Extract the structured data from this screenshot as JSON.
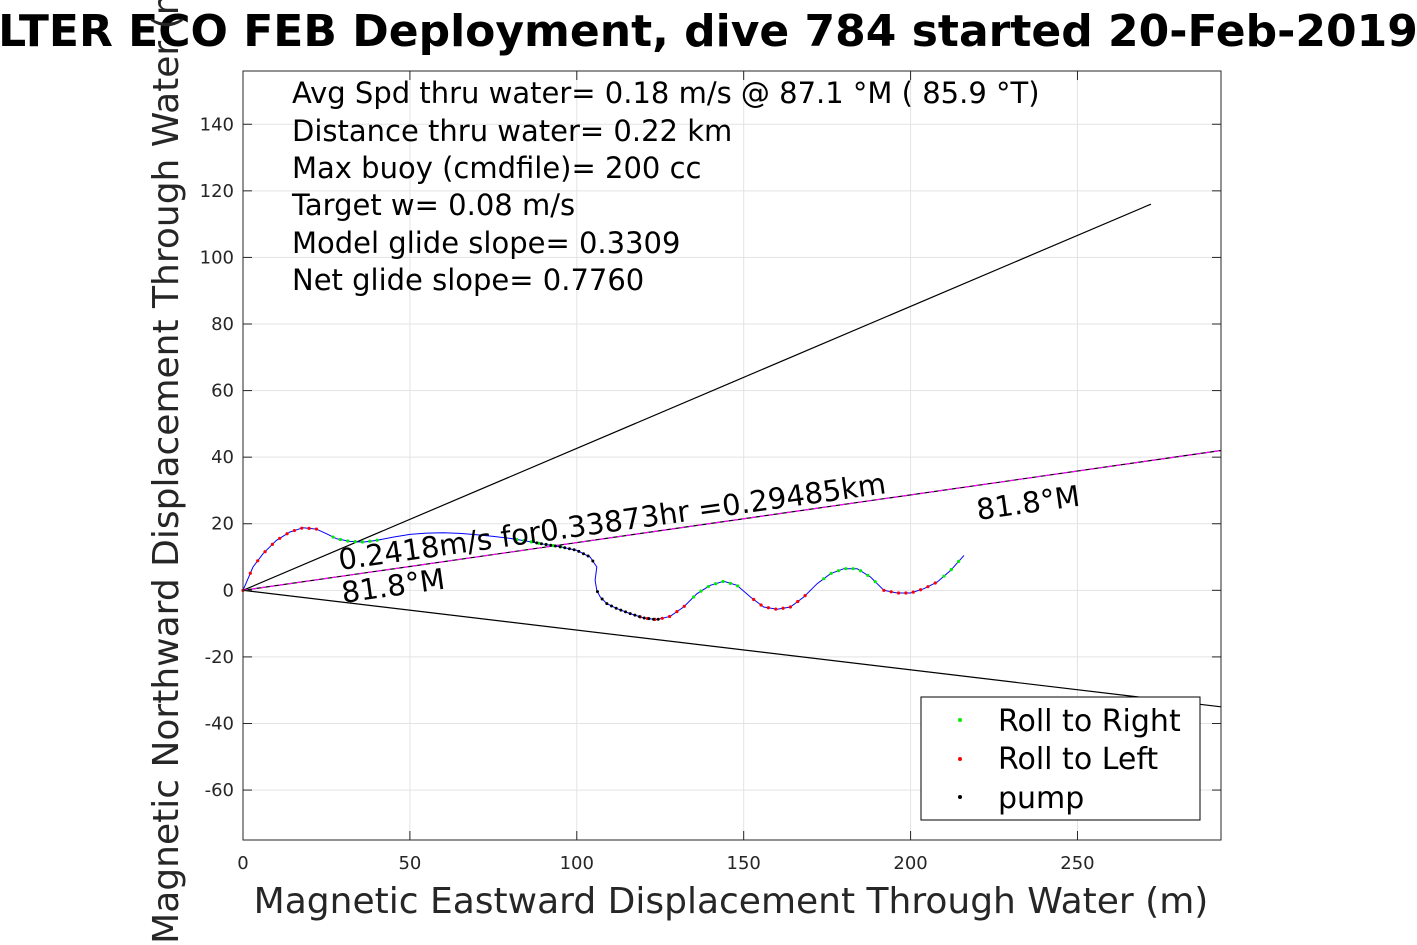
{
  "chart_data": {
    "type": "scatter",
    "title": "LTER ECO FEB Deployment, dive 784 started 20-Feb-2019",
    "xlabel": "Magnetic Eastward Displacement Through Water (m)",
    "ylabel": "Magnetic Northward Displacement Through Water (m)",
    "xlim": [
      0,
      293
    ],
    "ylim": [
      -75,
      156
    ],
    "xticks": [
      0,
      50,
      100,
      150,
      200,
      250
    ],
    "yticks": [
      -60,
      -40,
      -20,
      0,
      20,
      40,
      60,
      80,
      100,
      120,
      140
    ],
    "grid": true,
    "legend_position": "bottom-right",
    "info_lines": [
      "Avg Spd thru water=  0.18 m/s @  87.1 °M ( 85.9 °T)",
      "Distance thru water=  0.22 km",
      "Max buoy (cmdfile)= 200 cc",
      "Target w= 0.08 m/s",
      "Model glide slope= 0.3309",
      "Net glide slope= 0.7760"
    ],
    "annotations": {
      "current_text": "0.2418m/s for0.33873hr =0.29485km",
      "heading_label_near": "81.8°M",
      "heading_label_far": "81.8°M"
    },
    "reference_lines": [
      {
        "name": "upper cone",
        "color": "#000000",
        "points": [
          [
            0,
            0
          ],
          [
            272,
            116
          ]
        ]
      },
      {
        "name": "lower cone",
        "color": "#000000",
        "points": [
          [
            0,
            0
          ],
          [
            293,
            -35
          ]
        ]
      },
      {
        "name": "heading",
        "color": "#000000",
        "points": [
          [
            0,
            0
          ],
          [
            293,
            42
          ]
        ]
      },
      {
        "name": "current",
        "color": "#ff00ff",
        "dashed": true,
        "points": [
          [
            0,
            0
          ],
          [
            293,
            42
          ]
        ]
      }
    ],
    "track": {
      "color": "#0000ff",
      "points": [
        [
          0,
          0
        ],
        [
          3,
          7
        ],
        [
          6,
          11
        ],
        [
          10,
          15
        ],
        [
          14,
          17.5
        ],
        [
          18,
          18.8
        ],
        [
          22,
          18.4
        ],
        [
          25,
          17
        ],
        [
          28,
          15.5
        ],
        [
          32,
          14.7
        ],
        [
          36,
          14.5
        ],
        [
          40,
          15
        ],
        [
          45,
          16
        ],
        [
          50,
          16.8
        ],
        [
          55,
          17.2
        ],
        [
          60,
          17.3
        ],
        [
          65,
          17.1
        ],
        [
          70,
          16.7
        ],
        [
          75,
          16.2
        ],
        [
          80,
          15.6
        ],
        [
          85,
          14.8
        ],
        [
          90,
          13.9
        ],
        [
          95,
          13.1
        ],
        [
          100,
          12
        ],
        [
          104,
          10
        ],
        [
          106,
          7
        ],
        [
          105.5,
          3
        ],
        [
          106,
          0
        ],
        [
          107,
          -2
        ],
        [
          109,
          -4
        ],
        [
          112,
          -5.5
        ],
        [
          116,
          -7
        ],
        [
          120,
          -8.3
        ],
        [
          124,
          -8.8
        ],
        [
          128,
          -7.8
        ],
        [
          132,
          -5
        ],
        [
          136,
          -1
        ],
        [
          140,
          1.5
        ],
        [
          144,
          2.7
        ],
        [
          148,
          1.5
        ],
        [
          152,
          -2
        ],
        [
          156,
          -5
        ],
        [
          160,
          -5.7
        ],
        [
          164,
          -5
        ],
        [
          168,
          -2
        ],
        [
          172,
          2
        ],
        [
          176,
          5
        ],
        [
          180,
          6.5
        ],
        [
          184,
          6.5
        ],
        [
          188,
          4
        ],
        [
          192,
          0
        ],
        [
          196,
          -0.8
        ],
        [
          200,
          -0.8
        ],
        [
          204,
          0.5
        ],
        [
          208,
          2.5
        ],
        [
          212,
          6
        ],
        [
          216,
          10.5
        ]
      ]
    },
    "legend": [
      {
        "label": "Roll to Right",
        "color": "#00ee00"
      },
      {
        "label": "Roll to Left",
        "color": "#ff0000"
      },
      {
        "label": "pump",
        "color": "#000000"
      }
    ],
    "roll_right_segments": [
      [
        27,
        41
      ],
      [
        82,
        96
      ],
      [
        135,
        150
      ],
      [
        174,
        190
      ],
      [
        210,
        217
      ]
    ],
    "roll_left_segments": [
      [
        0,
        24
      ],
      [
        119,
        133
      ],
      [
        153,
        169
      ],
      [
        192,
        209
      ]
    ],
    "pump_segments": [
      [
        88,
        125
      ]
    ]
  }
}
